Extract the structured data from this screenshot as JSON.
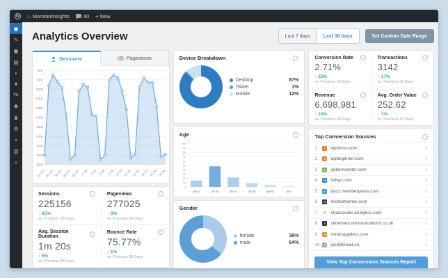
{
  "admin_bar": {
    "logo": "W",
    "site_name": "MonsterInsights",
    "comments_count": "40",
    "new_label": "+ New"
  },
  "sidebar": {
    "items": [
      {
        "name": "dashboard",
        "glyph": "◉",
        "active": true
      },
      {
        "name": "posts",
        "glyph": "✎"
      },
      {
        "name": "media",
        "glyph": "▣"
      },
      {
        "name": "pages",
        "glyph": "▤"
      },
      {
        "name": "comments",
        "glyph": "◗"
      },
      {
        "name": "feedback",
        "glyph": "▼"
      },
      {
        "name": "analytics-ta",
        "glyph": "TA"
      },
      {
        "name": "plugins",
        "glyph": "✚"
      },
      {
        "name": "users",
        "glyph": "♟"
      },
      {
        "name": "tools",
        "glyph": "⚙"
      },
      {
        "name": "settings",
        "glyph": "≡"
      },
      {
        "name": "insights",
        "glyph": "▥"
      },
      {
        "name": "collapse",
        "glyph": "«"
      }
    ]
  },
  "header": {
    "title": "Analytics Overview",
    "range7": "Last 7 days",
    "range30": "Last 30 days",
    "custom_range_label": "Set Custom Date Range"
  },
  "tabs": {
    "sessions": "Sessions",
    "pageviews": "Pageviews"
  },
  "colors": {
    "accent_blue": "#3a8fd0",
    "positive_green": "#35b588",
    "slate_button": "#7e95a7",
    "admin_dark": "#23282d"
  },
  "chart_data": [
    {
      "id": "sessions-over-time",
      "type": "line",
      "title": "Sessions",
      "x": [
        "22 Jun",
        "23 Jun",
        "24 Jun",
        "25 Jun",
        "26 Jun",
        "27 Jun",
        "28 Jun",
        "29 Jun",
        "30 Jun",
        "1 Jul",
        "2 Jul",
        "3 Jul",
        "4 Jul",
        "5 Jul",
        "6 Jul",
        "7 Jul",
        "8 Jul",
        "9 Jul",
        "10 Jul",
        "11 Jul",
        "12 Jul",
        "13 Jul",
        "14 Jul",
        "15 Jul",
        "16 Jul",
        "17 Jul",
        "18 Jul",
        "19 Jul",
        "20 Jul"
      ],
      "values": [
        3000,
        6700,
        7250,
        6900,
        6600,
        5200,
        2800,
        3000,
        6400,
        6750,
        6600,
        5150,
        5050,
        2750,
        3000,
        7000,
        7250,
        7100,
        6400,
        5400,
        2850,
        3050,
        6600,
        7100,
        6850,
        6850,
        5550,
        2900,
        3050
      ],
      "ylim": [
        2500,
        7500
      ],
      "ytick_step": 500,
      "xtick_every": 2,
      "grid": true,
      "line_color": "#68aade",
      "fill_color": "rgba(137,185,229,0.35)",
      "marker_fill": "#ffffff"
    },
    {
      "id": "device-breakdown",
      "type": "pie",
      "title": "Device Breakdown",
      "labels": [
        "Desktop",
        "Tablet",
        "Mobile"
      ],
      "values": [
        87,
        1,
        12
      ],
      "display": [
        "87%",
        "1%",
        "12%"
      ],
      "colors": [
        "#2e7cc3",
        "#56a0dc",
        "#c9e0f5"
      ],
      "legend_position": "right"
    },
    {
      "id": "age",
      "type": "bar",
      "title": "Age",
      "categories": [
        "18-24",
        "25-34",
        "35-44",
        "45-54",
        "55-64",
        "65+"
      ],
      "values": [
        15,
        48,
        22,
        9,
        5,
        2
      ],
      "ylim": [
        0,
        100
      ],
      "ytick_step": 10,
      "grid": true,
      "bar_colors": [
        "#a9d0ee",
        "#74aede",
        "#a9d0ee",
        "#bcdcf3",
        "#c8e2f6",
        "#d4e8f8"
      ]
    },
    {
      "id": "gender",
      "type": "pie",
      "title": "Gender",
      "labels": [
        "female",
        "male"
      ],
      "values": [
        36,
        64
      ],
      "display": [
        "36%",
        "64%"
      ],
      "colors": [
        "#a9cbe9",
        "#5b9fd6"
      ],
      "legend_position": "right"
    }
  ],
  "metrics": {
    "left": [
      {
        "label": "Sessions",
        "value": "225156",
        "change": "↑ 85%",
        "dir": "up",
        "compare": "vs. Previous 30 Days"
      },
      {
        "label": "Pageviews",
        "value": "277025",
        "change": "↑ 8%",
        "dir": "up",
        "compare": "vs. Previous 30 Days"
      },
      {
        "label": "Avg. Session Duration",
        "value": "1m 20s",
        "change": "↑ 6%",
        "dir": "up",
        "compare": "vs. Previous 30 Days"
      },
      {
        "label": "Bounce Rate",
        "value": "75.77%",
        "change": "↓ 1%",
        "dir": "down",
        "compare": "vs. Previous 30 Days"
      }
    ],
    "right": [
      {
        "label": "Conversion Rate",
        "value": "2.71%",
        "change": "↑ 22%",
        "dir": "up",
        "compare": "vs. Previous 30 Days"
      },
      {
        "label": "Transactions",
        "value": "3142",
        "change": "↑ 17%",
        "dir": "up",
        "compare": "vs. Previous 30 Days"
      },
      {
        "label": "Revenue",
        "value": "6,698,981",
        "change": "↑ 16%",
        "dir": "up",
        "compare": "vs. Previous 30 Days"
      },
      {
        "label": "Avg. Order Value",
        "value": "252.62",
        "change": "↑ 1%",
        "dir": "up",
        "compare": "vs. Previous 30 Days"
      }
    ]
  },
  "sources": {
    "title": "Top Conversion Sources",
    "button_label": "View Top Conversions Sources Report",
    "items": [
      {
        "rank": 1,
        "domain": "wpforms.com",
        "icon_glyph": "F",
        "icon_bg": "#e27730",
        "icon_fg": "#ffffff"
      },
      {
        "rank": 2,
        "domain": "wpbeginner.com",
        "icon_glyph": "B",
        "icon_bg": "#f47c20",
        "icon_fg": "#ffffff"
      },
      {
        "rank": 3,
        "domain": "optinmonster.com",
        "icon_glyph": "O",
        "icon_bg": "#7fb63d",
        "icon_fg": "#ffffff"
      },
      {
        "rank": 4,
        "domain": "isitwp.com",
        "icon_glyph": "W",
        "icon_bg": "#3b84c4",
        "icon_fg": "#ffffff"
      },
      {
        "rank": 5,
        "domain": "docs.memberpress.com",
        "icon_glyph": "m",
        "icon_bg": "#2f9fd0",
        "icon_fg": "#ffffff"
      },
      {
        "rank": 6,
        "domain": "michothemes.com",
        "icon_glyph": "M",
        "icon_bg": "#33383d",
        "icon_fg": "#ffffff"
      },
      {
        "rank": 7,
        "domain": "shareasale-analytics.com",
        "icon_glyph": "★",
        "icon_bg": "transparent",
        "icon_fg": "#f0b429"
      },
      {
        "rank": 8,
        "domain": "stickmancommunications.co.uk",
        "icon_glyph": "S",
        "icon_bg": "#2b2f33",
        "icon_fg": "#ffffff"
      },
      {
        "rank": 9,
        "domain": "mindsuppliers.com",
        "icon_glyph": "M",
        "icon_bg": "#ef8a1d",
        "icon_fg": "#ffffff"
      },
      {
        "rank": 10,
        "domain": "worldbroad.co",
        "icon_glyph": "W",
        "icon_bg": "#98a6b0",
        "icon_fg": "#ffffff"
      }
    ]
  }
}
